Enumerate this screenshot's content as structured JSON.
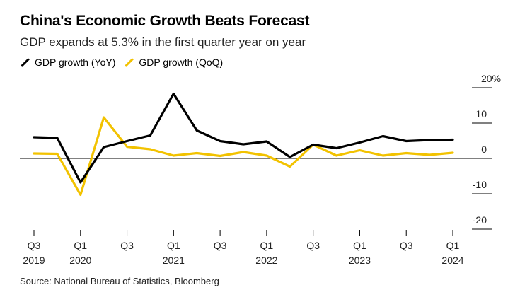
{
  "title": "China's Economic Growth Beats Forecast",
  "subtitle": "GDP expands at 5.3% in the first quarter year on year",
  "source": "Source: National Bureau of Statistics, Bloomberg",
  "colors": {
    "yoy": "#000000",
    "qoq": "#f2c200",
    "grid": "#cccccc",
    "zero": "#000000"
  },
  "chart_data": {
    "type": "line",
    "title": "China's Economic Growth Beats Forecast",
    "subtitle": "GDP expands at 5.3% in the first quarter year on year",
    "ylim": [
      -20,
      20
    ],
    "y_ticks": [
      20,
      10,
      0,
      -10,
      -20
    ],
    "y_tick_labels": [
      "20%",
      "10",
      "0",
      "-10",
      "-20"
    ],
    "y_axis_side": "right",
    "x": [
      "2019Q3",
      "2019Q4",
      "2020Q1",
      "2020Q2",
      "2020Q3",
      "2020Q4",
      "2021Q1",
      "2021Q2",
      "2021Q3",
      "2021Q4",
      "2022Q1",
      "2022Q2",
      "2022Q3",
      "2022Q4",
      "2023Q1",
      "2023Q2",
      "2023Q3",
      "2023Q4",
      "2024Q1"
    ],
    "x_tick_labels": [
      {
        "index": 0,
        "top": "Q3",
        "bottom": "2019"
      },
      {
        "index": 2,
        "top": "Q1",
        "bottom": "2020"
      },
      {
        "index": 4,
        "top": "Q3",
        "bottom": ""
      },
      {
        "index": 6,
        "top": "Q1",
        "bottom": "2021"
      },
      {
        "index": 8,
        "top": "Q3",
        "bottom": ""
      },
      {
        "index": 10,
        "top": "Q1",
        "bottom": "2022"
      },
      {
        "index": 12,
        "top": "Q3",
        "bottom": ""
      },
      {
        "index": 14,
        "top": "Q1",
        "bottom": "2023"
      },
      {
        "index": 16,
        "top": "Q3",
        "bottom": ""
      },
      {
        "index": 18,
        "top": "Q1",
        "bottom": "2024"
      }
    ],
    "series": [
      {
        "name": "GDP growth (YoY)",
        "key": "yoy",
        "values": [
          6.0,
          5.8,
          -6.8,
          3.2,
          4.9,
          6.5,
          18.3,
          7.9,
          4.9,
          4.0,
          4.8,
          0.4,
          3.9,
          2.9,
          4.5,
          6.3,
          4.9,
          5.2,
          5.3
        ]
      },
      {
        "name": "GDP growth (QoQ)",
        "key": "qoq",
        "values": [
          1.4,
          1.3,
          -10.3,
          11.6,
          3.3,
          2.6,
          0.8,
          1.5,
          0.7,
          1.8,
          0.8,
          -2.3,
          3.9,
          0.8,
          2.3,
          0.8,
          1.5,
          1.0,
          1.6
        ]
      }
    ]
  }
}
